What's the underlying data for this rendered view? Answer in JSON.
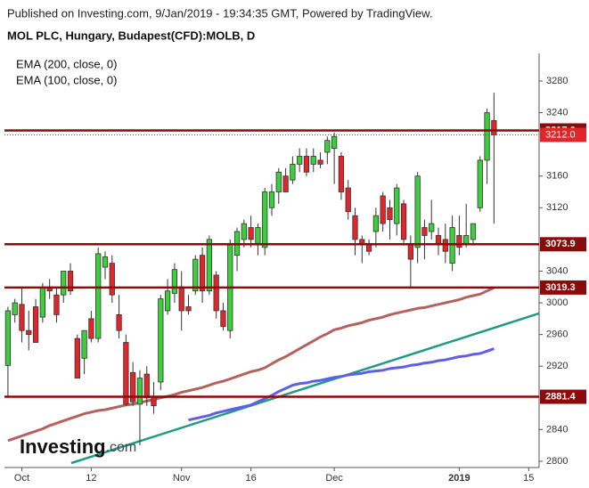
{
  "published": "Published on Investing.com, 9/Jan/2019 - 19:34:35 GMT, Powered by TradingView.",
  "logo": "Investing",
  "logo_suffix": ".com",
  "chart_data": {
    "type": "candlestick",
    "title": "MOL PLC, Hungary, Budapest(CFD):MOLB, D",
    "categories": [
      null,
      null,
      "Oct",
      null,
      null,
      null,
      null,
      null,
      null,
      null,
      null,
      null,
      "12",
      null,
      null,
      null,
      null,
      null,
      null,
      null,
      null,
      null,
      null,
      null,
      null,
      "Nov",
      null,
      null,
      null,
      null,
      null,
      null,
      null,
      null,
      null,
      "16",
      null,
      null,
      null,
      null,
      null,
      null,
      null,
      null,
      null,
      null,
      null,
      "Dec",
      null,
      null,
      null,
      null,
      null,
      null,
      null,
      null,
      null,
      null,
      null,
      null,
      null,
      null,
      null,
      null,
      null,
      "2019",
      null,
      null,
      null,
      null,
      null,
      null,
      null,
      null,
      null,
      "15",
      null
    ],
    "ohlc": {
      "open": [
        2921,
        2985,
        2998,
        2965,
        2995,
        2982,
        3020,
        3010,
        3010,
        3040,
        2955,
        2930,
        2980,
        2955,
        3045,
        3050,
        2985,
        2950,
        2912,
        2872,
        2910,
        2882,
        2900,
        2990,
        3012,
        3020,
        2995,
        3015,
        3060,
        3015,
        3035,
        2990,
        2965,
        3060,
        3080,
        3095,
        3075,
        3070,
        3120,
        3140,
        3160,
        3155,
        3175,
        3185,
        3175,
        3180,
        3190,
        3195,
        3185,
        3145,
        3110,
        3080,
        3075,
        3090,
        3135,
        3120,
        3100,
        3125,
        3075,
        3070,
        3095,
        3090,
        3085,
        3080,
        3050,
        3085,
        3075,
        3080,
        3120,
        3180,
        3230,
        null,
        null,
        null,
        null,
        null,
        null
      ],
      "high": [
        2995,
        3005,
        3020,
        2990,
        3005,
        3025,
        3030,
        3020,
        3040,
        3050,
        2960,
        2965,
        2990,
        3070,
        3065,
        3060,
        3010,
        2960,
        2925,
        2915,
        2920,
        2900,
        3010,
        3030,
        3050,
        3040,
        3010,
        3060,
        3070,
        3085,
        3040,
        3000,
        3080,
        3095,
        3105,
        3110,
        3100,
        3145,
        3150,
        3170,
        3170,
        3185,
        3195,
        3195,
        3195,
        3190,
        3210,
        3215,
        3190,
        3155,
        3120,
        3085,
        3080,
        3120,
        3140,
        3130,
        3150,
        3130,
        3085,
        3165,
        3105,
        3130,
        3095,
        3100,
        3110,
        3110,
        3125,
        3100,
        3185,
        3245,
        3265,
        null,
        null,
        null,
        null,
        null,
        null
      ],
      "low": [
        2882,
        2975,
        2950,
        2940,
        2950,
        2975,
        3005,
        2975,
        3000,
        3010,
        2905,
        2910,
        2950,
        2950,
        3030,
        3000,
        2955,
        2870,
        2870,
        2820,
        2870,
        2860,
        2890,
        2985,
        3000,
        2965,
        2985,
        3010,
        3000,
        3010,
        2980,
        2965,
        2955,
        3040,
        3070,
        3070,
        3060,
        3060,
        3110,
        3125,
        3140,
        3150,
        3165,
        3160,
        3165,
        3170,
        3175,
        3150,
        3130,
        3105,
        3060,
        3050,
        3060,
        3070,
        3090,
        3080,
        3085,
        3075,
        3020,
        3050,
        3055,
        3080,
        3060,
        3050,
        3040,
        3060,
        3070,
        3075,
        3115,
        3150,
        3100,
        null,
        null,
        null,
        null,
        null,
        null
      ],
      "close": [
        2990,
        3000,
        2965,
        2960,
        2950,
        3020,
        3015,
        2985,
        3040,
        3015,
        2905,
        2965,
        2955,
        3062,
        3058,
        3010,
        2965,
        2872,
        2875,
        2905,
        2880,
        2870,
        3005,
        3015,
        3042,
        2990,
        2990,
        3055,
        3015,
        3080,
        2990,
        2970,
        3075,
        3090,
        3100,
        3080,
        3095,
        3140,
        3140,
        3165,
        3140,
        3175,
        3185,
        3165,
        3185,
        3175,
        3205,
        3210,
        3140,
        3115,
        3080,
        3075,
        3065,
        3110,
        3100,
        3105,
        3145,
        3080,
        3055,
        3160,
        3085,
        3100,
        3075,
        3065,
        3095,
        3070,
        3085,
        3100,
        3180,
        3240,
        3212,
        null,
        null,
        null,
        null,
        null,
        null
      ]
    },
    "up_color": "#3ccf3c",
    "down_color": "#e0262b",
    "series": [
      {
        "name": "EMA (200, close, 0)",
        "color": "#b5615d",
        "values": [
          2826,
          2829,
          2832,
          2835,
          2838,
          2841,
          2845,
          2848,
          2851,
          2854,
          2857,
          2860,
          2862,
          2864,
          2865,
          2867,
          2869,
          2871,
          2872,
          2874,
          2876,
          2878,
          2880,
          2882,
          2884,
          2887,
          2889,
          2891,
          2893,
          2896,
          2899,
          2901,
          2904,
          2907,
          2910,
          2913,
          2915,
          2918,
          2923,
          2928,
          2932,
          2937,
          2942,
          2947,
          2952,
          2957,
          2961,
          2966,
          2968,
          2971,
          2973,
          2975,
          2978,
          2980,
          2982,
          2985,
          2987,
          2989,
          2991,
          2993,
          2994,
          2996,
          2998,
          3000,
          3002,
          3004,
          3007,
          3009,
          3011,
          3015,
          3019,
          null,
          null,
          null,
          null,
          null,
          null
        ]
      },
      {
        "name": "EMA (100, close, 0)",
        "color": "#5e5ee6",
        "values": [
          null,
          null,
          null,
          null,
          null,
          null,
          null,
          null,
          null,
          null,
          null,
          null,
          null,
          null,
          null,
          null,
          null,
          null,
          null,
          null,
          null,
          null,
          null,
          null,
          null,
          null,
          2852,
          2854,
          2856,
          2858,
          2861,
          2863,
          2865,
          2867,
          2869,
          2871,
          2875,
          2879,
          2883,
          2888,
          2892,
          2896,
          2898,
          2899,
          2901,
          2902,
          2904,
          2906,
          2907,
          2909,
          2910,
          2911,
          2913,
          2914,
          2915,
          2917,
          2918,
          2919,
          2921,
          2922,
          2924,
          2925,
          2927,
          2928,
          2930,
          2932,
          2933,
          2935,
          2936,
          2939,
          2942,
          null,
          null,
          null,
          null,
          null,
          null
        ]
      }
    ],
    "levels": [
      3217.6,
      3073.9,
      3019.3,
      2881.4
    ],
    "level_color": "#8b0a0a",
    "last_price": {
      "value": 3212,
      "label": "3212.0"
    },
    "last_color": "#e0262b",
    "ylim": [
      2792.1,
      3314.8
    ],
    "yticks": [
      2800,
      2840,
      2920,
      2960,
      3000,
      3040,
      3120,
      3160,
      3240,
      3280
    ]
  }
}
